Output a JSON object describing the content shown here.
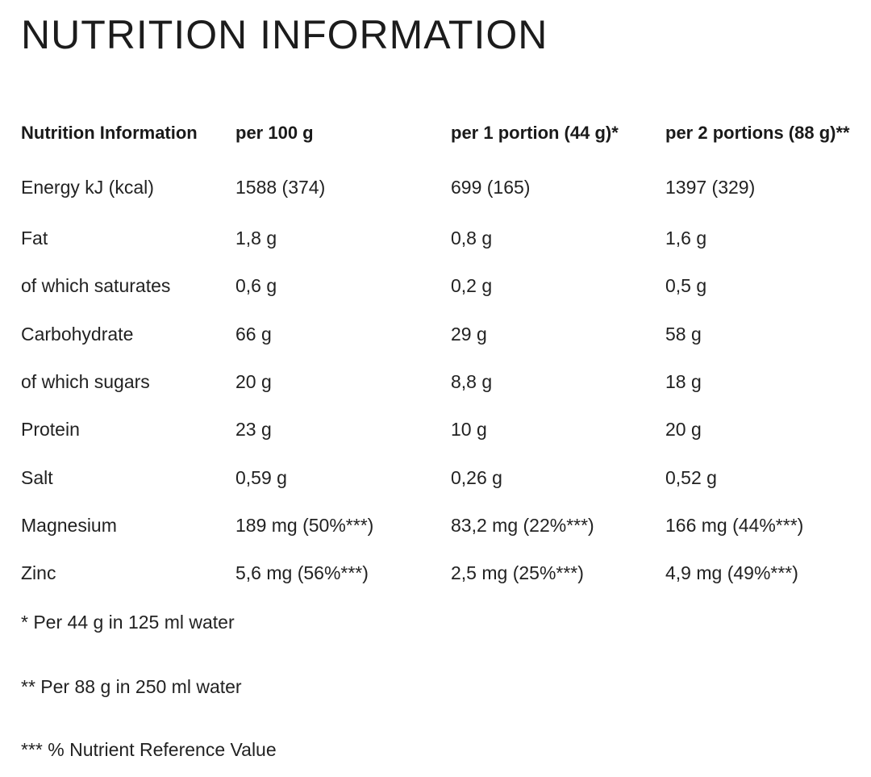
{
  "title": "NUTRITION INFORMATION",
  "table": {
    "headers": [
      "Nutrition Information",
      "per 100 g",
      "per 1 portion (44 g)*",
      "per 2 portions (88 g)**"
    ],
    "rows": [
      [
        "Energy kJ (kcal)",
        "1588 (374)",
        "699 (165)",
        "1397 (329)"
      ],
      [
        "Fat",
        "1,8 g",
        "0,8 g",
        "1,6 g"
      ],
      [
        "of which saturates",
        "0,6 g",
        "0,2 g",
        "0,5 g"
      ],
      [
        "Carbohydrate",
        "66 g",
        "29 g",
        "58 g"
      ],
      [
        "of which sugars",
        "20 g",
        "8,8 g",
        "18 g"
      ],
      [
        "Protein",
        "23 g",
        "10 g",
        "20 g"
      ],
      [
        "Salt",
        "0,59 g",
        "0,26 g",
        "0,52 g"
      ],
      [
        "Magnesium",
        "189 mg (50%***)",
        "83,2 mg (22%***)",
        "166 mg (44%***)"
      ],
      [
        "Zinc",
        "5,6 mg (56%***)",
        "2,5 mg (25%***)",
        "4,9 mg (49%***)"
      ]
    ]
  },
  "footnotes": [
    "* Per 44 g in 125 ml water",
    "** Per 88 g in 250 ml water",
    "*** % Nutrient Reference Value"
  ]
}
